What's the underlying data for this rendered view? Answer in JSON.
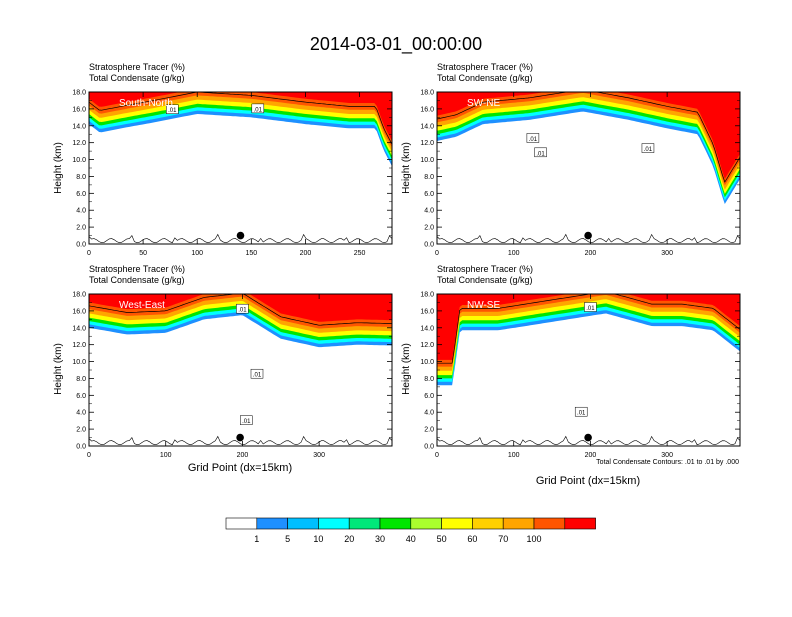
{
  "title": "2014-03-01_00:00:00",
  "panel_header": {
    "line1": "Stratosphere Tracer   (%)",
    "line2": "Total Condensate   (g/kg)"
  },
  "ylabel": "Height (km)",
  "xlabel": "Grid Point (dx=15km)",
  "footnote": "Total Condensate Contours: .01 to .01 by .000",
  "contour_label": ".01",
  "colors": {
    "levels": [
      "#ffffff",
      "#1e90ff",
      "#00bfff",
      "#00ffff",
      "#00e87a",
      "#00e600",
      "#aaff2e",
      "#ffff00",
      "#ffd000",
      "#ffa500",
      "#ff5500",
      "#ff0000"
    ],
    "contour": "#000000"
  },
  "chart_data": [
    {
      "type": "heatmap",
      "name": "South-North",
      "xlim": [
        0,
        280
      ],
      "xticks": [
        0,
        50,
        100,
        150,
        200,
        250
      ],
      "ylim": [
        0,
        18
      ],
      "yticks": [
        "0.0",
        "2.0",
        "4.0",
        "6.0",
        "8.0",
        "10.0",
        "12.0",
        "14.0",
        "16.0",
        "18.0"
      ],
      "tracer_base_km": [
        [
          0,
          15.0
        ],
        [
          10,
          14.0
        ],
        [
          30,
          14.5
        ],
        [
          60,
          15.2
        ],
        [
          100,
          16.2
        ],
        [
          150,
          15.8
        ],
        [
          200,
          15.0
        ],
        [
          240,
          14.5
        ],
        [
          265,
          14.5
        ],
        [
          272,
          12.0
        ],
        [
          280,
          10.0
        ]
      ],
      "marker": {
        "x": 140,
        "y": 1.0
      },
      "labels": [
        {
          "x": 77,
          "y": 15.9,
          "text": ".01"
        },
        {
          "x": 156,
          "y": 16.0,
          "text": ".01"
        }
      ]
    },
    {
      "type": "heatmap",
      "name": "SW-NE",
      "xlim": [
        0,
        395
      ],
      "xticks": [
        0,
        100,
        200,
        300
      ],
      "ylim": [
        0,
        18
      ],
      "yticks": [
        "0.0",
        "2.0",
        "4.0",
        "6.0",
        "8.0",
        "10.0",
        "12.0",
        "14.0",
        "16.0",
        "18.0"
      ],
      "tracer_base_km": [
        [
          0,
          13.0
        ],
        [
          25,
          13.5
        ],
        [
          60,
          15.0
        ],
        [
          120,
          15.5
        ],
        [
          190,
          16.5
        ],
        [
          250,
          15.5
        ],
        [
          300,
          14.5
        ],
        [
          340,
          13.8
        ],
        [
          360,
          10.0
        ],
        [
          375,
          5.5
        ],
        [
          395,
          8.5
        ]
      ],
      "marker": {
        "x": 197,
        "y": 1.0
      },
      "labels": [
        {
          "x": 125,
          "y": 12.5,
          "text": ".01"
        },
        {
          "x": 135,
          "y": 10.8,
          "text": ".01"
        },
        {
          "x": 275,
          "y": 11.3,
          "text": ".01"
        }
      ]
    },
    {
      "type": "heatmap",
      "name": "West-East",
      "xlim": [
        0,
        395
      ],
      "xticks": [
        0,
        100,
        200,
        300
      ],
      "ylim": [
        0,
        18
      ],
      "yticks": [
        "0.0",
        "2.0",
        "4.0",
        "6.0",
        "8.0",
        "10.0",
        "12.0",
        "14.0",
        "16.0",
        "18.0"
      ],
      "tracer_base_km": [
        [
          0,
          14.8
        ],
        [
          50,
          14.0
        ],
        [
          100,
          14.2
        ],
        [
          150,
          15.8
        ],
        [
          200,
          16.3
        ],
        [
          250,
          13.5
        ],
        [
          300,
          12.5
        ],
        [
          350,
          12.8
        ],
        [
          395,
          12.7
        ]
      ],
      "marker": {
        "x": 197,
        "y": 1.0
      },
      "labels": [
        {
          "x": 200,
          "y": 16.2,
          "text": ".01"
        },
        {
          "x": 219,
          "y": 8.5,
          "text": ".01"
        },
        {
          "x": 205,
          "y": 3.0,
          "text": ".01"
        }
      ]
    },
    {
      "type": "heatmap",
      "name": "NW-SE",
      "xlim": [
        0,
        395
      ],
      "xticks": [
        0,
        100,
        200,
        300
      ],
      "ylim": [
        0,
        18
      ],
      "yticks": [
        "0.0",
        "2.0",
        "4.0",
        "6.0",
        "8.0",
        "10.0",
        "12.0",
        "14.0",
        "16.0",
        "18.0"
      ],
      "tracer_base_km": [
        [
          0,
          8.0
        ],
        [
          20,
          8.0
        ],
        [
          30,
          14.5
        ],
        [
          80,
          14.5
        ],
        [
          150,
          15.5
        ],
        [
          220,
          16.5
        ],
        [
          280,
          15.0
        ],
        [
          320,
          15.0
        ],
        [
          360,
          14.5
        ],
        [
          395,
          12.0
        ]
      ],
      "marker": {
        "x": 197,
        "y": 1.0
      },
      "labels": [
        {
          "x": 200,
          "y": 16.4,
          "text": ".01"
        },
        {
          "x": 188,
          "y": 4.0,
          "text": ".01"
        }
      ]
    }
  ],
  "colorbar": {
    "labels": [
      "1",
      "5",
      "10",
      "20",
      "30",
      "40",
      "50",
      "60",
      "70",
      "100"
    ]
  }
}
